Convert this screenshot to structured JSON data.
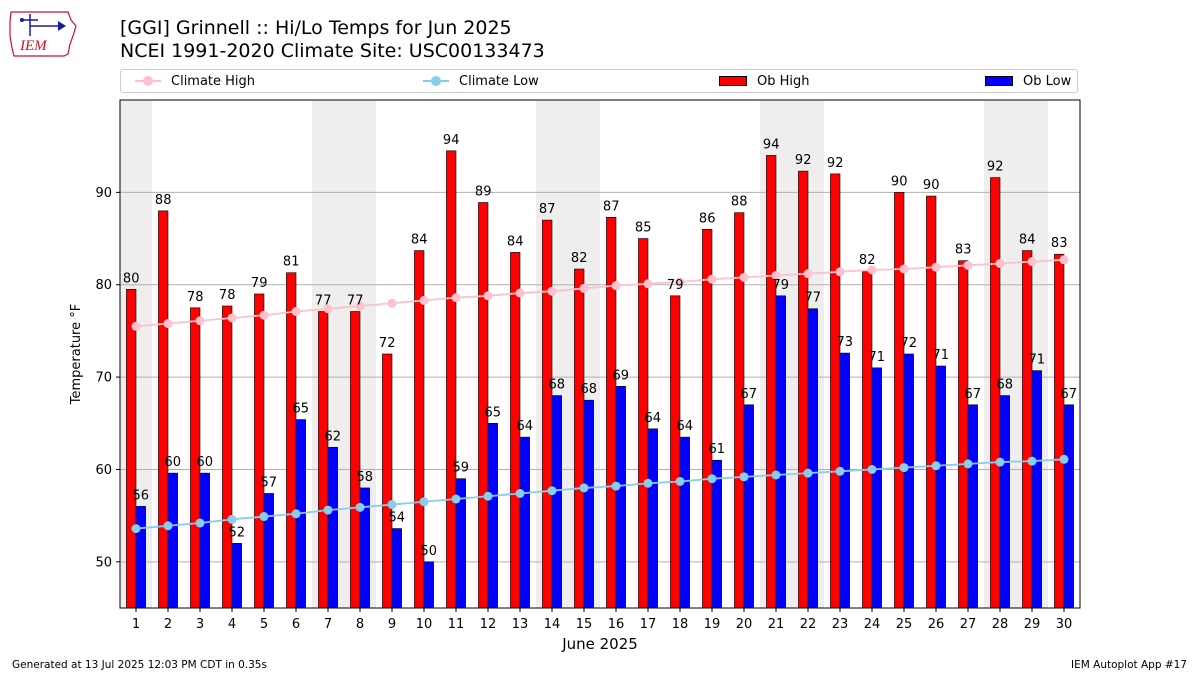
{
  "header": {
    "logo_text": "IEM",
    "title_line1": "[GGI] Grinnell :: Hi/Lo Temps for Jun 2025",
    "title_line2": "NCEI 1991-2020 Climate Site: USC00133473"
  },
  "legend": [
    {
      "label": "Climate High",
      "kind": "line",
      "color": "#ffc0cb"
    },
    {
      "label": "Climate Low",
      "kind": "line",
      "color": "#87ceeb"
    },
    {
      "label": "Ob High",
      "kind": "bar",
      "color": "#ff0000"
    },
    {
      "label": "Ob Low",
      "kind": "bar",
      "color": "#0000ff"
    }
  ],
  "footer": {
    "generated": "Generated at 13 Jul 2025 12:03 PM CDT in 0.35s",
    "app": "IEM Autoplot App #17"
  },
  "chart_data": {
    "type": "bar",
    "xlabel": "June 2025",
    "ylabel": "Temperature °F",
    "ylim": [
      45,
      100
    ],
    "yticks": [
      50,
      60,
      70,
      80,
      90
    ],
    "grid": "horizontal",
    "weekend_shading_days": [
      1,
      7,
      8,
      14,
      15,
      21,
      22,
      28,
      29
    ],
    "categories": [
      1,
      2,
      3,
      4,
      5,
      6,
      7,
      8,
      9,
      10,
      11,
      12,
      13,
      14,
      15,
      16,
      17,
      18,
      19,
      20,
      21,
      22,
      23,
      24,
      25,
      26,
      27,
      28,
      29,
      30
    ],
    "ob_high": {
      "name": "Ob High",
      "color": "#ff0000",
      "values": [
        79.5,
        88,
        77.5,
        77.7,
        79,
        81.3,
        77.1,
        77.1,
        72.5,
        83.7,
        94.5,
        88.9,
        83.5,
        87,
        81.7,
        87.3,
        85,
        78.8,
        86,
        87.8,
        94,
        92.3,
        92,
        81.5,
        90,
        89.6,
        82.6,
        91.6,
        83.7,
        83.3
      ],
      "labels": [
        "80",
        "88",
        "78",
        "78",
        "79",
        "81",
        "77",
        "77",
        "72",
        "84",
        "94",
        "89",
        "84",
        "87",
        "82",
        "87",
        "85",
        "79",
        "86",
        "88",
        "94",
        "92",
        "92",
        "82",
        "90",
        "90",
        "83",
        "92",
        "84",
        "83"
      ]
    },
    "ob_low": {
      "name": "Ob Low",
      "color": "#0000ff",
      "values": [
        56,
        59.6,
        59.6,
        52,
        57.4,
        65.4,
        62.4,
        58,
        53.6,
        50,
        59,
        65,
        63.5,
        68,
        67.5,
        69,
        64.4,
        63.5,
        61,
        67,
        78.8,
        77.4,
        72.6,
        71,
        72.5,
        71.2,
        67,
        68,
        70.7,
        67
      ],
      "labels": [
        "56",
        "60",
        "60",
        "52",
        "57",
        "65",
        "62",
        "58",
        "54",
        "50",
        "59",
        "65",
        "64",
        "68",
        "68",
        "69",
        "64",
        "64",
        "61",
        "67",
        "79",
        "77",
        "73",
        "71",
        "72",
        "71",
        "67",
        "68",
        "71",
        "67"
      ]
    },
    "climate_high": {
      "name": "Climate High",
      "color": "#ffc0cb",
      "values": [
        75.5,
        75.8,
        76.1,
        76.4,
        76.7,
        77.1,
        77.4,
        77.7,
        78.0,
        78.3,
        78.6,
        78.8,
        79.1,
        79.3,
        79.6,
        79.9,
        80.1,
        80.3,
        80.6,
        80.8,
        81.0,
        81.2,
        81.4,
        81.6,
        81.7,
        81.9,
        82.1,
        82.3,
        82.5,
        82.7
      ]
    },
    "climate_low": {
      "name": "Climate Low",
      "color": "#87ceeb",
      "values": [
        53.6,
        53.9,
        54.2,
        54.6,
        54.9,
        55.2,
        55.6,
        55.9,
        56.2,
        56.5,
        56.8,
        57.1,
        57.4,
        57.7,
        58.0,
        58.2,
        58.5,
        58.7,
        59.0,
        59.2,
        59.4,
        59.6,
        59.8,
        60.0,
        60.2,
        60.4,
        60.6,
        60.8,
        60.9,
        61.1
      ]
    }
  }
}
